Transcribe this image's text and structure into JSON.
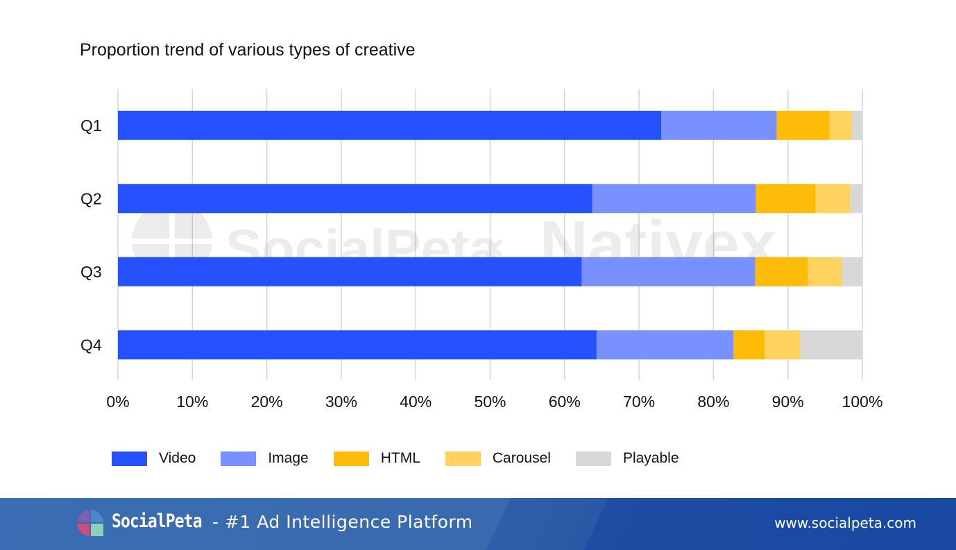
{
  "chart_data": {
    "type": "bar",
    "orientation": "horizontal",
    "stacked": true,
    "normalized": true,
    "title": "Proportion trend of various types of creative",
    "xlabel": "",
    "ylabel": "",
    "xlim": [
      0,
      100
    ],
    "x_tick_labels": [
      "0%",
      "10%",
      "20%",
      "30%",
      "40%",
      "50%",
      "60%",
      "70%",
      "80%",
      "90%",
      "100%"
    ],
    "x_ticks": [
      0,
      10,
      20,
      30,
      40,
      50,
      60,
      70,
      80,
      90,
      100
    ],
    "grid": true,
    "legend_position": "bottom",
    "categories": [
      "Q1",
      "Q2",
      "Q3",
      "Q4"
    ],
    "series": [
      {
        "name": "Video",
        "color": "#2651ff",
        "values": [
          73.0,
          63.7,
          62.3,
          64.3
        ]
      },
      {
        "name": "Image",
        "color": "#7891ff",
        "values": [
          15.5,
          22.0,
          23.3,
          18.4
        ]
      },
      {
        "name": "HTML",
        "color": "#febb08",
        "values": [
          7.1,
          8.0,
          7.1,
          4.2
        ]
      },
      {
        "name": "Carousel",
        "color": "#ffd35e",
        "values": [
          3.0,
          4.7,
          4.6,
          4.8
        ]
      },
      {
        "name": "Playable",
        "color": "#d8d8d8",
        "values": [
          1.4,
          1.6,
          2.7,
          8.3
        ]
      }
    ]
  },
  "watermark": {
    "left": "SocialPeta",
    "separator": "×",
    "right": "Nativex"
  },
  "footer": {
    "brand": "SocialPeta",
    "tagline": "- #1 Ad Intelligence Platform",
    "url": "www.socialpeta.com"
  }
}
